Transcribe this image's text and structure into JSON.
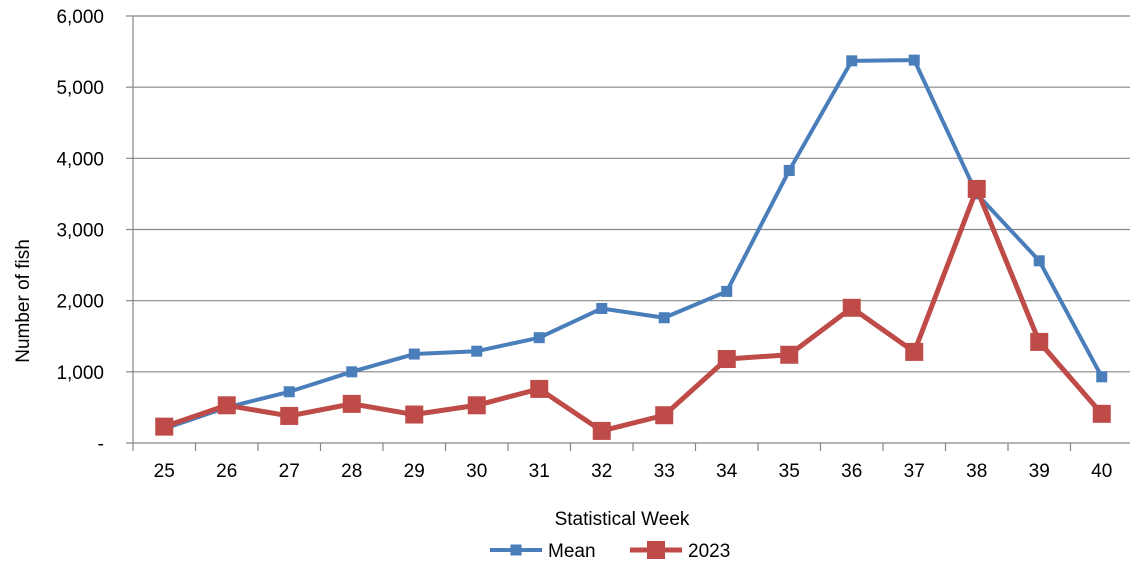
{
  "chart_data": {
    "type": "line",
    "title": "",
    "xlabel": "Statistical Week",
    "ylabel": "Number of fish",
    "x": [
      25,
      26,
      27,
      28,
      29,
      30,
      31,
      32,
      33,
      34,
      35,
      36,
      37,
      38,
      39,
      40
    ],
    "ylim": [
      0,
      6000
    ],
    "y_ticks": [
      0,
      1000,
      2000,
      3000,
      4000,
      5000,
      6000
    ],
    "y_tick_labels": [
      "-",
      "1,000",
      "2,000",
      "3,000",
      "4,000",
      "5,000",
      "6,000"
    ],
    "grid": true,
    "legend_position": "bottom",
    "series": [
      {
        "name": "Mean",
        "color": "#4a7ebb",
        "marker": "square-small",
        "values": [
          200,
          500,
          720,
          1000,
          1250,
          1290,
          1480,
          1890,
          1760,
          2130,
          3830,
          5370,
          5380,
          3500,
          2560,
          930
        ]
      },
      {
        "name": "2023",
        "color": "#be4b48",
        "marker": "square-large",
        "values": [
          230,
          530,
          380,
          550,
          400,
          530,
          760,
          170,
          390,
          1180,
          1240,
          1900,
          1280,
          3570,
          1420,
          410
        ]
      }
    ]
  }
}
